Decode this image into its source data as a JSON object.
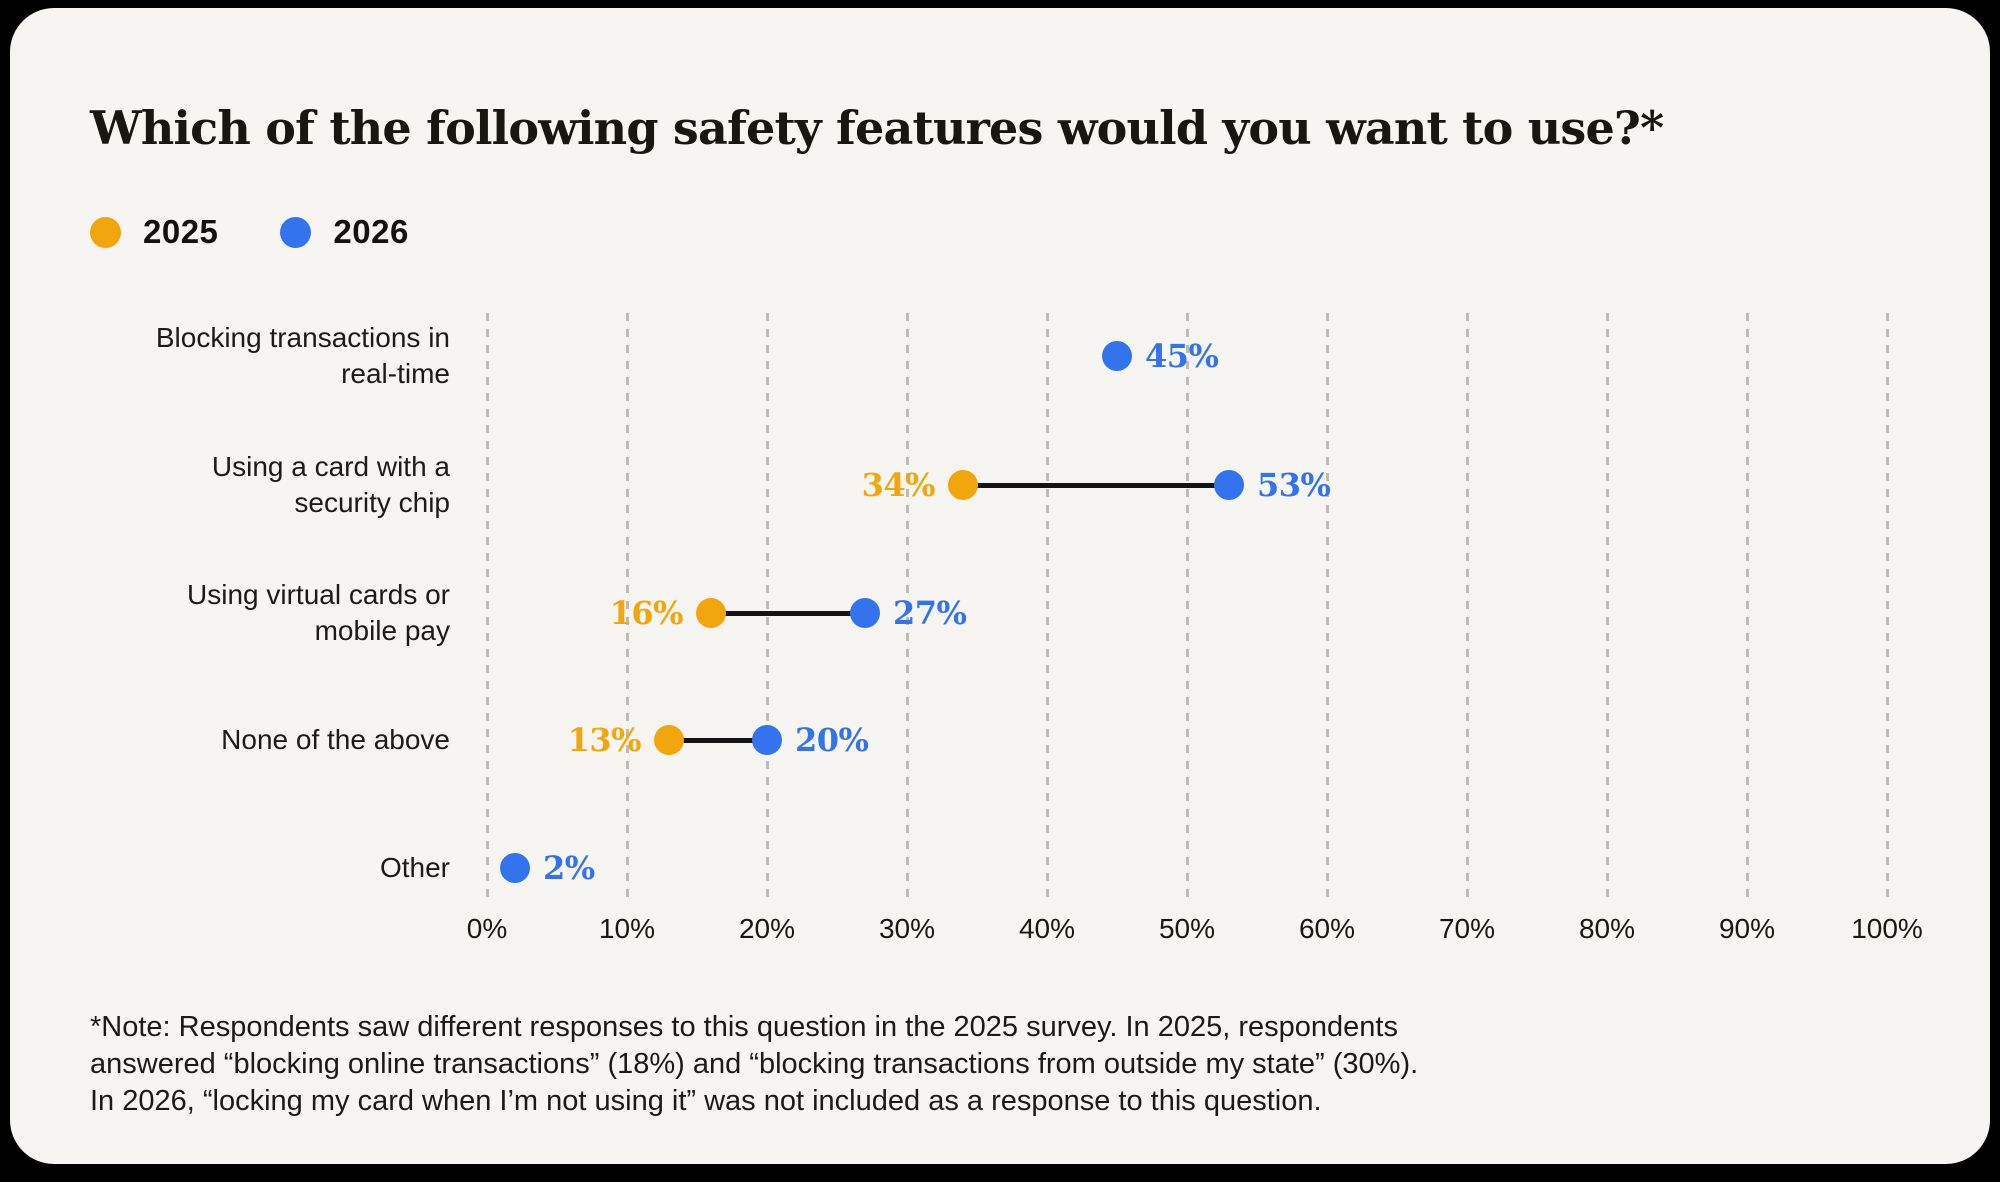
{
  "page": {
    "background_color": "#000000",
    "card_color": "#F7F5F1"
  },
  "chart_data": {
    "type": "dumbbell",
    "title": "Which of the following safety features would you want to use?*",
    "categories": [
      "Blocking transactions in\nreal-time",
      "Using a card with a\nsecurity chip",
      "Using virtual cards or\nmobile pay",
      "None of the above",
      "Other"
    ],
    "series": [
      {
        "name": "2025",
        "color": "#F2A60D",
        "values": [
          null,
          34,
          16,
          13,
          null
        ]
      },
      {
        "name": "2026",
        "color": "#3473EE",
        "values": [
          45,
          53,
          27,
          20,
          2
        ]
      }
    ],
    "value_suffix": "%",
    "connector_color": "#141414",
    "gridline_color": "#BFBCB7",
    "legend_position": "top-left",
    "x_axis": {
      "min": 0,
      "max": 100,
      "tick_step": 10,
      "tick_labels": [
        "0%",
        "10%",
        "20%",
        "30%",
        "40%",
        "50%",
        "60%",
        "70%",
        "80%",
        "90%",
        "100%"
      ],
      "gridlines": "dashed-vertical"
    }
  },
  "note": {
    "lines": [
      "*Note: Respondents saw different responses to this question in the 2025 survey. In 2025, respondents",
      "answered “blocking online transactions” (18%) and “blocking transactions from outside my state” (30%).",
      "In 2026, “locking my card when I’m not using it” was not included as a response to this question."
    ]
  }
}
